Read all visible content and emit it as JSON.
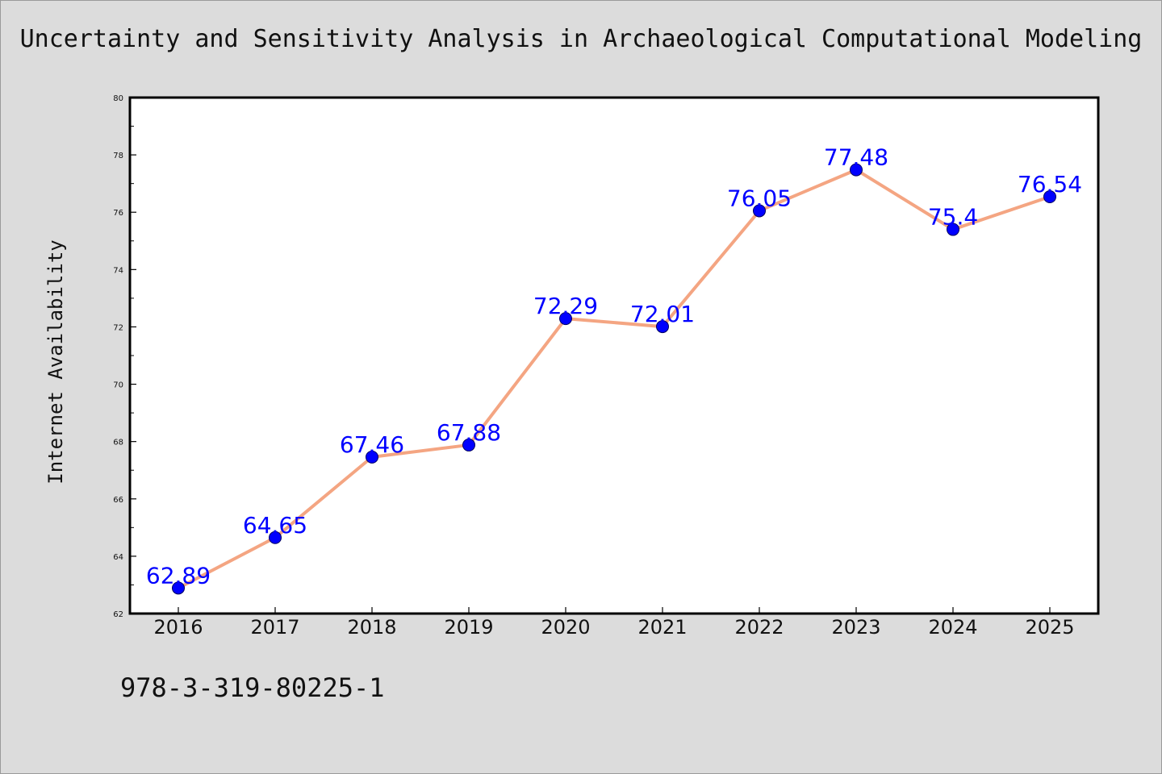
{
  "chart_data": {
    "type": "line",
    "title": "Uncertainty and Sensitivity Analysis in Archaeological Computational Modeling",
    "xlabel": "",
    "ylabel": "Internet Availability",
    "categories": [
      "2016",
      "2017",
      "2018",
      "2019",
      "2020",
      "2021",
      "2022",
      "2023",
      "2024",
      "2025"
    ],
    "values": [
      62.89,
      64.65,
      67.46,
      67.88,
      72.29,
      72.01,
      76.05,
      77.48,
      75.4,
      76.54
    ],
    "data_labels": [
      "62.89",
      "64.65",
      "67.46",
      "67.88",
      "72.29",
      "72.01",
      "76.05",
      "77.48",
      "75.4",
      "76.54"
    ],
    "ylim": [
      62,
      80
    ],
    "yticks": [
      "62",
      "64",
      "66",
      "68",
      "70",
      "72",
      "74",
      "76",
      "78",
      "80"
    ],
    "grid": false,
    "legend": "none",
    "colors": {
      "line": "#f4a582",
      "marker": "#0000ff",
      "data_label": "#0000ff"
    }
  },
  "footer": {
    "isbn": "978-3-319-80225-1"
  }
}
